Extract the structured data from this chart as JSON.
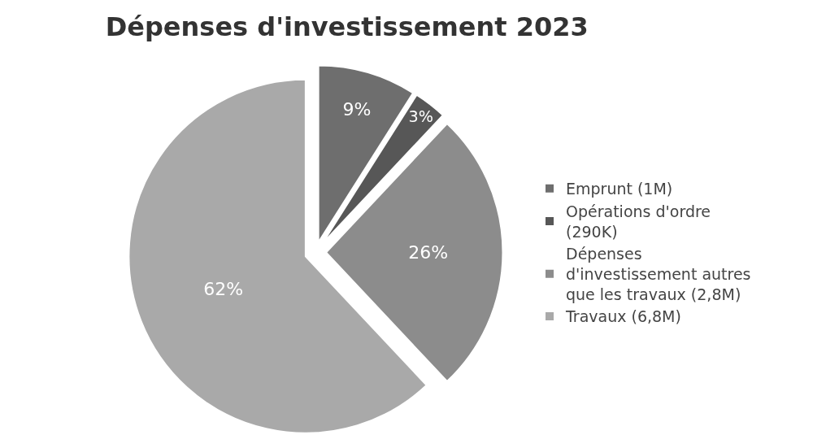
{
  "chart_data": {
    "type": "pie",
    "title": "Dépenses d'investissement 2023",
    "categories": [
      "Emprunt (1M)",
      "Opérations d'ordre (290K)",
      "Dépenses d'investissement autres que les travaux (2,8M)",
      "Travaux (6,8M)"
    ],
    "values": [
      9,
      3,
      26,
      62
    ],
    "value_labels": [
      "9%",
      "3%",
      "26%",
      "62%"
    ],
    "colors": [
      "#6e6e6e",
      "#575757",
      "#8c8c8c",
      "#a9a9a9"
    ],
    "legend": "right"
  }
}
